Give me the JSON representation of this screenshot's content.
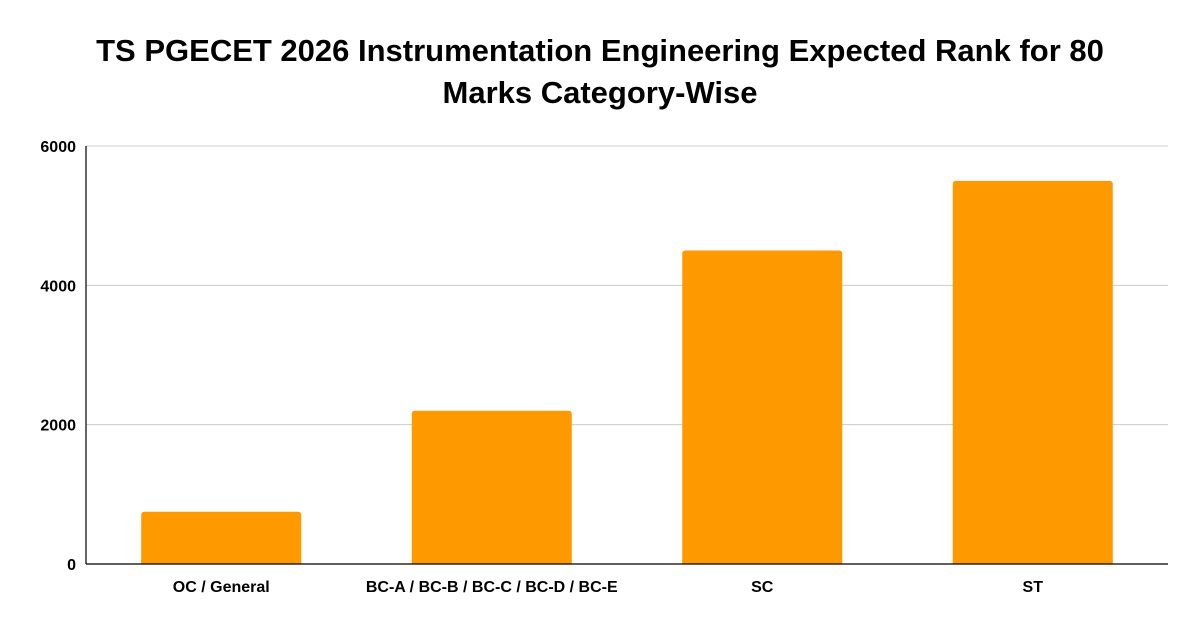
{
  "chart_data": {
    "type": "bar",
    "title": "TS PGECET 2026 Instrumentation Engineering Expected Rank for 80 Marks Category-Wise",
    "xlabel": "",
    "ylabel": "",
    "categories": [
      "OC / General",
      "BC-A / BC-B / BC-C / BC-D / BC-E",
      "SC",
      "ST"
    ],
    "values": [
      750,
      2200,
      4500,
      5500
    ],
    "ylim": [
      0,
      6000
    ],
    "yticks": [
      0,
      2000,
      4000,
      6000
    ],
    "grid": true,
    "legend": "none",
    "bar_color": "#ff9900",
    "grid_color": "#cccccc",
    "axis_color": "#000000"
  }
}
